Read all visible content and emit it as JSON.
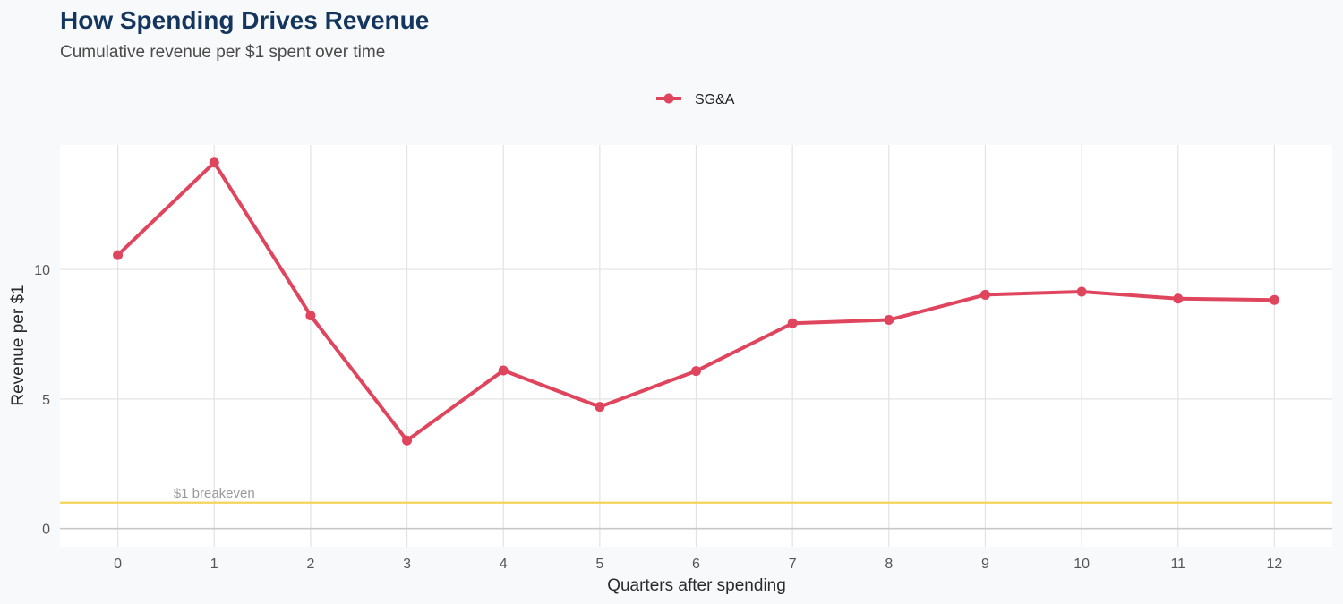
{
  "chart_data": {
    "type": "line",
    "title": "How Spending Drives Revenue",
    "subtitle": "Cumulative revenue per $1 spent over time",
    "xlabel": "Quarters after spending",
    "ylabel": "Revenue per $1",
    "x": [
      0,
      1,
      2,
      3,
      4,
      5,
      6,
      7,
      8,
      9,
      10,
      11,
      12
    ],
    "x_tick_labels": [
      "0",
      "1",
      "2",
      "3",
      "4",
      "5",
      "6",
      "7",
      "8",
      "9",
      "10",
      "11",
      "12"
    ],
    "y_ticks": [
      0,
      5,
      10
    ],
    "y_tick_labels": [
      "0",
      "5",
      "10"
    ],
    "xlim": [
      -0.6,
      12.6
    ],
    "ylim": [
      -0.7,
      14.8
    ],
    "grid": true,
    "legend_position": "top-center",
    "series": [
      {
        "name": "SG&A",
        "color": "#e0455e",
        "values": [
          10.55,
          14.12,
          8.22,
          3.4,
          6.1,
          4.7,
          6.08,
          7.92,
          8.05,
          9.02,
          9.14,
          8.87,
          8.82
        ]
      }
    ],
    "reference_line": {
      "value": 1,
      "label": "$1 breakeven",
      "color": "#f2d45c"
    }
  }
}
